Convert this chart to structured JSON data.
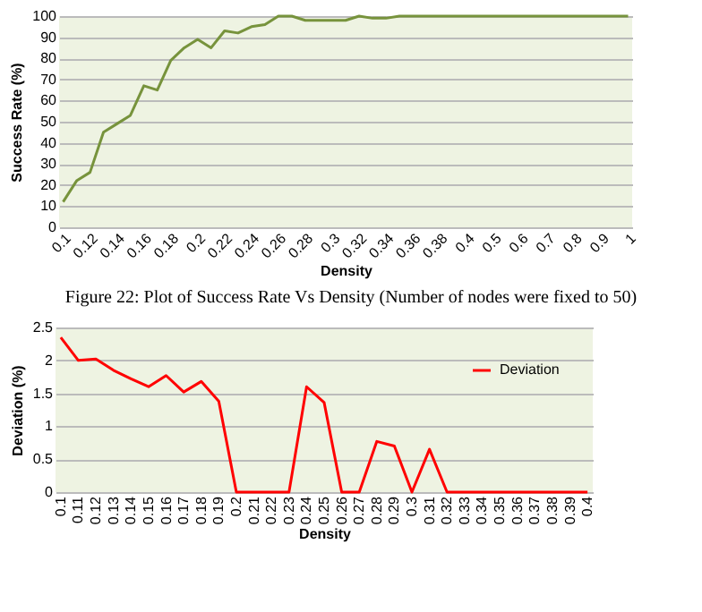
{
  "chart_data": [
    {
      "type": "line",
      "xlabel": "Density",
      "ylabel": "Success Rate  (%)",
      "categories": [
        "0.1",
        null,
        "0.12",
        null,
        "0.14",
        null,
        "0.16",
        null,
        "0.18",
        null,
        "0.2",
        null,
        "0.22",
        null,
        "0.24",
        null,
        "0.26",
        null,
        "0.28",
        null,
        "0.3",
        null,
        "0.32",
        null,
        "0.34",
        null,
        "0.36",
        null,
        "0.38",
        null,
        "0.4",
        null,
        "0.5",
        null,
        "0.6",
        null,
        "0.7",
        null,
        "0.8",
        null,
        "0.9",
        null,
        "1"
      ],
      "series": [
        {
          "color": "#77933c",
          "values": [
            12,
            22,
            26,
            45,
            49,
            53,
            67,
            65,
            79,
            85,
            89,
            85,
            93,
            92,
            95,
            96,
            100,
            100,
            98,
            98,
            98,
            98,
            100,
            99,
            99,
            100,
            100,
            100,
            100,
            100,
            100,
            100,
            100,
            100,
            100,
            100,
            100,
            100,
            100,
            100,
            100,
            100,
            100
          ]
        }
      ],
      "ylim": [
        0,
        100
      ],
      "yticks": [
        0,
        10,
        20,
        30,
        40,
        50,
        60,
        70,
        80,
        90,
        100
      ],
      "grid": "y",
      "legend": false,
      "annotations": [
        "Figure 22: Plot of Success Rate Vs Density (Number of nodes were fixed to 50)"
      ]
    },
    {
      "type": "line",
      "xlabel": "Density",
      "ylabel": "Deviation (%)",
      "categories": [
        "0.1",
        "0.11",
        "0.12",
        "0.13",
        "0.14",
        "0.15",
        "0.16",
        "0.17",
        "0.18",
        "0.19",
        "0.2",
        "0.21",
        "0.22",
        "0.23",
        "0.24",
        "0.25",
        "0.26",
        "0.27",
        "0.28",
        "0.29",
        "0.3",
        "0.31",
        "0.32",
        "0.33",
        "0.34",
        "0.35",
        "0.36",
        "0.37",
        "0.38",
        "0.39",
        "0.4"
      ],
      "series": [
        {
          "name": "Deviation",
          "color": "#ff0000",
          "values": [
            2.35,
            2.0,
            2.02,
            1.85,
            1.72,
            1.6,
            1.77,
            1.52,
            1.68,
            1.38,
            0,
            0,
            0,
            0,
            1.6,
            1.36,
            0,
            0,
            0.77,
            0.7,
            0,
            0.65,
            0,
            0,
            0,
            0,
            0,
            0,
            0,
            0,
            0
          ]
        }
      ],
      "ylim": [
        0,
        2.5
      ],
      "yticks": [
        0,
        0.5,
        1,
        1.5,
        2,
        2.5
      ],
      "grid": "y",
      "legend": "top right"
    }
  ]
}
